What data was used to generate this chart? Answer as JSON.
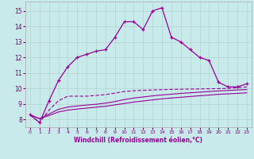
{
  "xlabel": "Windchill (Refroidissement éolien,°C)",
  "background_color": "#c8eaea",
  "grid_color": "#b8d8d8",
  "line_color": "#990099",
  "xlim": [
    -0.5,
    23.5
  ],
  "ylim": [
    7.5,
    15.6
  ],
  "xticks": [
    0,
    1,
    2,
    3,
    4,
    5,
    6,
    7,
    8,
    9,
    10,
    11,
    12,
    13,
    14,
    15,
    16,
    17,
    18,
    19,
    20,
    21,
    22,
    23
  ],
  "yticks": [
    8,
    9,
    10,
    11,
    12,
    13,
    14,
    15
  ],
  "hours": [
    0,
    1,
    2,
    3,
    4,
    5,
    6,
    7,
    8,
    9,
    10,
    11,
    12,
    13,
    14,
    15,
    16,
    17,
    18,
    19,
    20,
    21,
    22,
    23
  ],
  "line1": [
    8.3,
    7.8,
    9.2,
    10.5,
    11.4,
    12.0,
    12.2,
    12.4,
    12.5,
    13.3,
    14.3,
    14.3,
    13.8,
    15.0,
    15.2,
    13.3,
    13.0,
    12.5,
    12.0,
    11.8,
    10.4,
    10.1,
    10.1,
    10.3
  ],
  "line2": [
    8.3,
    7.8,
    8.6,
    9.2,
    9.5,
    9.5,
    9.5,
    9.55,
    9.6,
    9.7,
    9.8,
    9.85,
    9.88,
    9.9,
    9.92,
    9.94,
    9.95,
    9.96,
    9.97,
    9.98,
    9.99,
    10.0,
    10.05,
    10.1
  ],
  "line3": [
    8.3,
    8.05,
    8.35,
    8.65,
    8.8,
    8.87,
    8.93,
    8.98,
    9.05,
    9.15,
    9.28,
    9.38,
    9.45,
    9.52,
    9.58,
    9.63,
    9.68,
    9.72,
    9.76,
    9.8,
    9.84,
    9.87,
    9.9,
    9.93
  ],
  "line4": [
    8.3,
    8.05,
    8.25,
    8.48,
    8.6,
    8.67,
    8.73,
    8.79,
    8.85,
    8.94,
    9.03,
    9.12,
    9.19,
    9.26,
    9.33,
    9.38,
    9.43,
    9.48,
    9.53,
    9.57,
    9.62,
    9.65,
    9.68,
    9.72
  ]
}
